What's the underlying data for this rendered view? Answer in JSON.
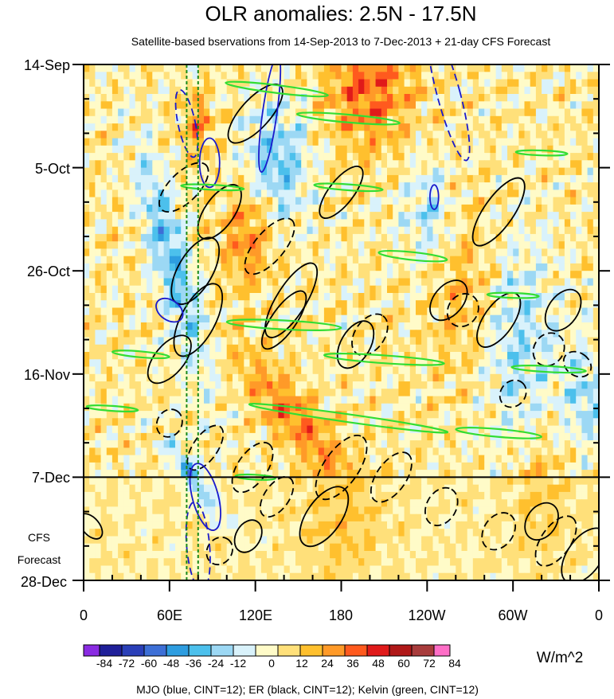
{
  "chart_data": {
    "type": "heatmap",
    "title": "OLR anomalies: 2.5N - 17.5N",
    "subtitle": "Satellite-based bservations from 14-Sep-2013 to 7-Dec-2013 + 21-day CFS Forecast",
    "x_axis": {
      "labels": [
        "0",
        "60E",
        "120E",
        "180",
        "120W",
        "60W",
        "0"
      ],
      "longitudes": [
        0,
        60,
        120,
        180,
        240,
        300,
        360
      ],
      "range": [
        0,
        360
      ]
    },
    "y_axis": {
      "labels": [
        "14-Sep",
        "5-Oct",
        "26-Oct",
        "16-Nov",
        "7-Dec",
        "28-Dec"
      ],
      "days": [
        0,
        21,
        42,
        63,
        84,
        105
      ],
      "range_days": [
        0,
        105
      ],
      "reversed": true
    },
    "forecast_label": [
      "CFS",
      "Forecast"
    ],
    "forecast_start_day": 84,
    "reference_lon_lines": [
      72,
      80
    ],
    "colorbar": {
      "levels": [
        -84,
        -72,
        -60,
        -48,
        -36,
        -24,
        -12,
        0,
        12,
        24,
        36,
        48,
        60,
        72,
        84
      ],
      "tick_labels": [
        "-84",
        "-72",
        "-60",
        "-48",
        "-36",
        "-24",
        "-12",
        "0",
        "12",
        "24",
        "36",
        "48",
        "60",
        "72",
        "84"
      ],
      "colors": [
        "#8a2be2",
        "#1f1f99",
        "#2a3fb8",
        "#3d6fd6",
        "#2e9de0",
        "#4cc0ec",
        "#9cd8f4",
        "#d9f2fb",
        "#fffbc8",
        "#ffe07a",
        "#ffc02e",
        "#ff9a28",
        "#ff5a1e",
        "#e01a1a",
        "#b01818",
        "#a83c3c",
        "#ff6ec7"
      ],
      "units": "W/m^2"
    },
    "legend_text": "MJO (blue, CINT=12); ER (black, CINT=12); Kelvin (green, CINT=12)",
    "contour_series": [
      {
        "name": "MJO",
        "color": "#1a1acc",
        "cint": 12
      },
      {
        "name": "ER",
        "color": "#000000",
        "cint": 12
      },
      {
        "name": "Kelvin",
        "color": "#33dd33",
        "cint": 12
      }
    ]
  }
}
